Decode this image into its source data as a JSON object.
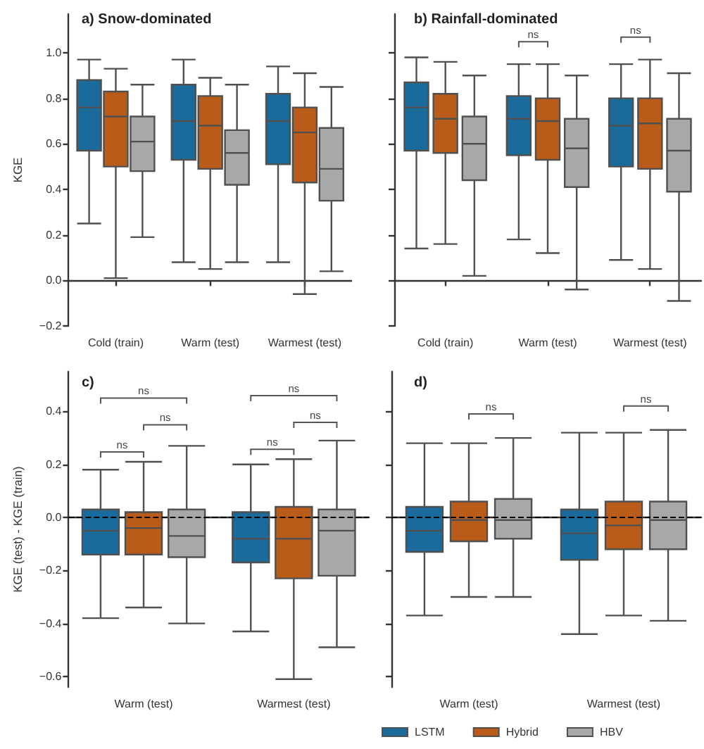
{
  "chart_data": [
    {
      "type": "box",
      "title": "a) Snow-dominated",
      "ylabel": "KGE",
      "categories": [
        "Cold (train)",
        "Warm (test)",
        "Warmest (test)"
      ],
      "series": [
        {
          "color": "#1a6b9b",
          "boxes": [
            {
              "low": 0.25,
              "q1": 0.57,
              "median": 0.76,
              "q3": 0.88,
              "high": 0.97
            },
            {
              "low": 0.08,
              "q1": 0.53,
              "median": 0.7,
              "q3": 0.86,
              "high": 0.97
            },
            {
              "low": 0.08,
              "q1": 0.51,
              "median": 0.7,
              "q3": 0.82,
              "high": 0.94
            }
          ]
        },
        {
          "color": "#b95c1a",
          "boxes": [
            {
              "low": 0.01,
              "q1": 0.5,
              "median": 0.72,
              "q3": 0.83,
              "high": 0.93
            },
            {
              "low": 0.05,
              "q1": 0.49,
              "median": 0.68,
              "q3": 0.81,
              "high": 0.89
            },
            {
              "low": -0.06,
              "q1": 0.43,
              "median": 0.65,
              "q3": 0.76,
              "high": 0.91
            }
          ]
        },
        {
          "color": "#a8a8a8",
          "boxes": [
            {
              "low": 0.19,
              "q1": 0.48,
              "median": 0.61,
              "q3": 0.72,
              "high": 0.86
            },
            {
              "low": 0.08,
              "q1": 0.42,
              "median": 0.56,
              "q3": 0.66,
              "high": 0.86
            },
            {
              "low": 0.04,
              "q1": 0.35,
              "median": 0.49,
              "q3": 0.67,
              "high": 0.85
            }
          ]
        }
      ],
      "ylim": [
        -0.2,
        1.17
      ],
      "yticks": [
        {
          "value": -0.2,
          "label": "−0.2"
        },
        {
          "value": 0,
          "label": "0.0"
        },
        0.2,
        0.4,
        0.6,
        0.8,
        {
          "value": 1,
          "label": "1.0"
        }
      ]
    },
    {
      "type": "box",
      "title": "b) Rainfall-dominated",
      "categories": [
        "Cold (train)",
        "Warm (test)",
        "Warmest (test)"
      ],
      "series": [
        {
          "color": "#1a6b9b",
          "boxes": [
            {
              "low": 0.14,
              "q1": 0.57,
              "median": 0.76,
              "q3": 0.87,
              "high": 0.98
            },
            {
              "low": 0.18,
              "q1": 0.55,
              "median": 0.71,
              "q3": 0.81,
              "high": 0.95
            },
            {
              "low": 0.09,
              "q1": 0.5,
              "median": 0.68,
              "q3": 0.8,
              "high": 0.95
            }
          ]
        },
        {
          "color": "#b95c1a",
          "boxes": [
            {
              "low": 0.16,
              "q1": 0.56,
              "median": 0.71,
              "q3": 0.82,
              "high": 0.96
            },
            {
              "low": 0.12,
              "q1": 0.53,
              "median": 0.7,
              "q3": 0.8,
              "high": 0.95
            },
            {
              "low": 0.05,
              "q1": 0.49,
              "median": 0.69,
              "q3": 0.8,
              "high": 0.97
            }
          ]
        },
        {
          "color": "#a8a8a8",
          "boxes": [
            {
              "low": 0.02,
              "q1": 0.44,
              "median": 0.6,
              "q3": 0.72,
              "high": 0.9
            },
            {
              "low": -0.04,
              "q1": 0.41,
              "median": 0.58,
              "q3": 0.71,
              "high": 0.9
            },
            {
              "low": -0.09,
              "q1": 0.39,
              "median": 0.57,
              "q3": 0.71,
              "high": 0.91
            }
          ]
        }
      ],
      "ylim": [
        -0.2,
        1.17
      ],
      "yticks": [
        -0.2,
        0,
        0.2,
        0.4,
        0.6,
        0.8,
        1
      ],
      "tick_labels": "x",
      "annotations": [
        "ns",
        "ns"
      ]
    },
    {
      "type": "box",
      "title": "c)",
      "ylabel": "KGE (test) - KGE (train)",
      "categories": [
        "Warm (test)",
        "Warmest (test)"
      ],
      "series": [
        {
          "color": "#1a6b9b",
          "boxes": [
            {
              "low": -0.38,
              "q1": -0.14,
              "median": -0.05,
              "q3": 0.03,
              "high": 0.18
            },
            {
              "low": -0.43,
              "q1": -0.17,
              "median": -0.08,
              "q3": 0.02,
              "high": 0.2
            }
          ]
        },
        {
          "color": "#b95c1a",
          "boxes": [
            {
              "low": -0.34,
              "q1": -0.14,
              "median": -0.04,
              "q3": 0.02,
              "high": 0.21
            },
            {
              "low": -0.61,
              "q1": -0.23,
              "median": -0.08,
              "q3": 0.04,
              "high": 0.22
            }
          ]
        },
        {
          "color": "#a8a8a8",
          "boxes": [
            {
              "low": -0.4,
              "q1": -0.15,
              "median": -0.07,
              "q3": 0.03,
              "high": 0.27
            },
            {
              "low": -0.49,
              "q1": -0.22,
              "median": -0.05,
              "q3": 0.03,
              "high": 0.29
            }
          ]
        }
      ],
      "ylim": [
        -0.64,
        0.55
      ],
      "yticks": [
        {
          "value": -0.6,
          "label": "−0.6"
        },
        {
          "value": -0.4,
          "label": "−0.4"
        },
        {
          "value": -0.2,
          "label": "−0.2"
        },
        {
          "value": 0,
          "label": "0.0"
        },
        0.2,
        0.4
      ],
      "ref_lines": [
        {
          "axis": "y",
          "value": 0,
          "color": "#000000",
          "line_style": "dashed"
        }
      ],
      "annotations": [
        "ns",
        "ns",
        "ns",
        "ns",
        "ns",
        "ns"
      ]
    },
    {
      "type": "box",
      "title": "d)",
      "categories": [
        "Warm (test)",
        "Warmest (test)"
      ],
      "series": [
        {
          "name": "LSTM",
          "color": "#1a6b9b",
          "boxes": [
            {
              "low": -0.37,
              "q1": -0.13,
              "median": -0.05,
              "q3": 0.04,
              "high": 0.28
            },
            {
              "low": -0.44,
              "q1": -0.16,
              "median": -0.06,
              "q3": 0.03,
              "high": 0.32
            }
          ]
        },
        {
          "name": "Hybrid",
          "color": "#b95c1a",
          "boxes": [
            {
              "low": -0.3,
              "q1": -0.09,
              "median": -0.01,
              "q3": 0.06,
              "high": 0.28
            },
            {
              "low": -0.37,
              "q1": -0.12,
              "median": -0.03,
              "q3": 0.06,
              "high": 0.32
            }
          ]
        },
        {
          "name": "HBV",
          "color": "#a8a8a8",
          "boxes": [
            {
              "low": -0.3,
              "q1": -0.08,
              "median": -0.01,
              "q3": 0.07,
              "high": 0.3
            },
            {
              "low": -0.39,
              "q1": -0.12,
              "median": -0.01,
              "q3": 0.06,
              "high": 0.33
            }
          ]
        }
      ],
      "ylim": [
        -0.64,
        0.55
      ],
      "yticks": [
        -0.6,
        -0.4,
        -0.2,
        0,
        0.2,
        0.4
      ],
      "tick_labels": "x",
      "ref_lines": [
        {
          "axis": "y",
          "value": 0,
          "color": "#000000",
          "line_style": "dashed"
        }
      ],
      "legend": "bottom",
      "annotations": [
        "ns",
        "ns"
      ]
    }
  ]
}
